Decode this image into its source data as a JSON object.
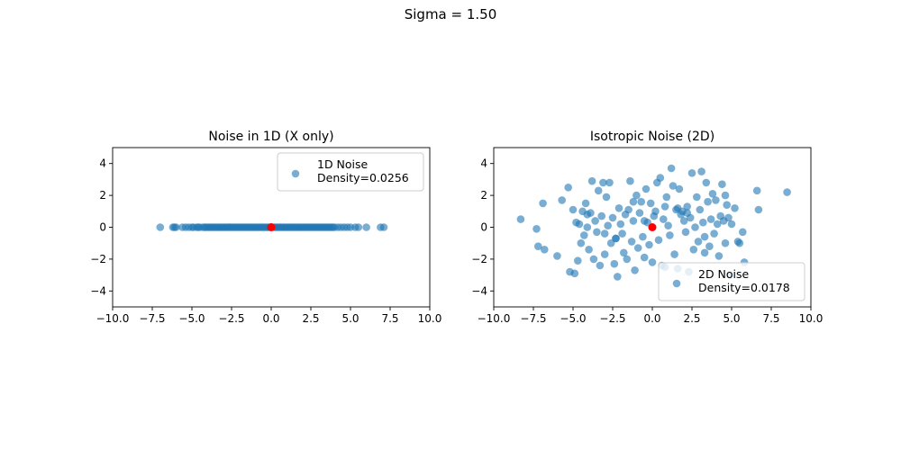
{
  "figure": {
    "suptitle": "Sigma = 1.50"
  },
  "chart_data": [
    {
      "type": "scatter",
      "title": "Noise in 1D (X only)",
      "xlabel": "",
      "ylabel": "",
      "xlim": [
        -10,
        10
      ],
      "ylim": [
        -5,
        5
      ],
      "xticks": [
        -10,
        -7.5,
        -5,
        -2.5,
        0,
        2.5,
        5,
        7.5,
        10
      ],
      "xtick_labels": [
        "−10.0",
        "−7.5",
        "−5.0",
        "−2.5",
        "0.0",
        "2.5",
        "5.0",
        "7.5",
        "10.0"
      ],
      "yticks": [
        -4,
        -2,
        0,
        2,
        4
      ],
      "ytick_labels": [
        "−4",
        "−2",
        "0",
        "2",
        "4"
      ],
      "grid": false,
      "legend": {
        "placement": "upper-right",
        "entries": [
          "1D Noise",
          "Density=0.0256"
        ]
      },
      "series": [
        {
          "name": "1D Noise",
          "color": "#1f77b4",
          "x": [
            -7.0,
            -6.2,
            -6.1,
            -6.0,
            -5.6,
            -5.4,
            -5.2,
            -5.0,
            -4.9,
            -4.7,
            -4.6,
            -4.5,
            -4.3,
            -4.2,
            -4.1,
            -4.0,
            -3.9,
            -3.8,
            -3.7,
            -3.6,
            -3.5,
            -3.4,
            -3.3,
            -3.2,
            -3.1,
            -3.0,
            -2.9,
            -2.8,
            -2.7,
            -2.6,
            -2.5,
            -2.4,
            -2.3,
            -2.2,
            -2.1,
            -2.0,
            -1.9,
            -1.8,
            -1.7,
            -1.6,
            -1.5,
            -1.4,
            -1.3,
            -1.2,
            -1.1,
            -1.0,
            -0.9,
            -0.8,
            -0.7,
            -0.6,
            -0.5,
            -0.4,
            -0.3,
            -0.2,
            -0.1,
            0.1,
            0.2,
            0.3,
            0.4,
            0.5,
            0.6,
            0.7,
            0.8,
            0.9,
            1.0,
            1.1,
            1.2,
            1.3,
            1.4,
            1.5,
            1.6,
            1.7,
            1.8,
            1.9,
            2.0,
            2.1,
            2.2,
            2.3,
            2.4,
            2.5,
            2.6,
            2.7,
            2.8,
            2.9,
            3.0,
            3.1,
            3.2,
            3.3,
            3.4,
            3.5,
            3.6,
            3.7,
            3.8,
            3.9,
            4.0,
            4.2,
            4.4,
            4.6,
            4.8,
            5.0,
            5.3,
            5.5,
            6.0,
            6.9,
            7.1
          ],
          "y": [
            0,
            0,
            0,
            0,
            0,
            0,
            0,
            0,
            0,
            0,
            0,
            0,
            0,
            0,
            0,
            0,
            0,
            0,
            0,
            0,
            0,
            0,
            0,
            0,
            0,
            0,
            0,
            0,
            0,
            0,
            0,
            0,
            0,
            0,
            0,
            0,
            0,
            0,
            0,
            0,
            0,
            0,
            0,
            0,
            0,
            0,
            0,
            0,
            0,
            0,
            0,
            0,
            0,
            0,
            0,
            0,
            0,
            0,
            0,
            0,
            0,
            0,
            0,
            0,
            0,
            0,
            0,
            0,
            0,
            0,
            0,
            0,
            0,
            0,
            0,
            0,
            0,
            0,
            0,
            0,
            0,
            0,
            0,
            0,
            0,
            0,
            0,
            0,
            0,
            0,
            0,
            0,
            0,
            0,
            0,
            0,
            0,
            0,
            0,
            0,
            0,
            0,
            0,
            0,
            0
          ]
        },
        {
          "name": "",
          "color": "#ff0000",
          "x": [
            0
          ],
          "y": [
            0
          ]
        }
      ]
    },
    {
      "type": "scatter",
      "title": "Isotropic Noise (2D)",
      "xlabel": "",
      "ylabel": "",
      "xlim": [
        -10,
        10
      ],
      "ylim": [
        -5,
        5
      ],
      "xticks": [
        -10,
        -7.5,
        -5,
        -2.5,
        0,
        2.5,
        5,
        7.5,
        10
      ],
      "xtick_labels": [
        "−10.0",
        "−7.5",
        "−5.0",
        "−2.5",
        "0.0",
        "2.5",
        "5.0",
        "7.5",
        "10.0"
      ],
      "yticks": [
        -4,
        -2,
        0,
        2,
        4
      ],
      "ytick_labels": [
        "−4",
        "−2",
        "0",
        "2",
        "4"
      ],
      "grid": false,
      "legend": {
        "placement": "lower-right",
        "entries": [
          "2D Noise",
          "Density=0.0178"
        ]
      },
      "series": [
        {
          "name": "2D Noise",
          "color": "#1f77b4",
          "x": [
            -8.3,
            -7.3,
            -7.2,
            -6.9,
            -6.8,
            -6.0,
            -5.7,
            -5.3,
            -5.2,
            -5.0,
            -4.9,
            -4.8,
            -4.7,
            -4.6,
            -4.5,
            -4.4,
            -4.3,
            -4.2,
            -4.1,
            -4.0,
            -3.9,
            -3.8,
            -3.7,
            -3.6,
            -3.5,
            -3.4,
            -3.3,
            -3.2,
            -3.1,
            -3.0,
            -2.9,
            -2.8,
            -2.7,
            -2.6,
            -2.5,
            -2.4,
            -2.3,
            -2.2,
            -2.1,
            -2.0,
            -1.9,
            -1.8,
            -1.7,
            -1.6,
            -1.5,
            -1.4,
            -1.3,
            -1.2,
            -1.1,
            -1.0,
            -0.9,
            -0.8,
            -0.7,
            -0.6,
            -0.5,
            -0.4,
            -0.3,
            -0.2,
            -0.1,
            0.0,
            0.1,
            0.2,
            0.3,
            0.4,
            0.5,
            0.6,
            0.7,
            0.8,
            0.9,
            1.0,
            1.1,
            1.2,
            1.3,
            1.4,
            1.5,
            1.6,
            1.7,
            1.8,
            1.9,
            2.0,
            2.1,
            2.2,
            2.3,
            2.4,
            2.5,
            2.6,
            2.7,
            2.8,
            2.9,
            3.0,
            3.1,
            3.2,
            3.3,
            3.4,
            3.5,
            3.6,
            3.7,
            3.8,
            3.9,
            4.0,
            4.1,
            4.2,
            4.3,
            4.4,
            4.5,
            4.6,
            4.7,
            4.8,
            4.9,
            5.0,
            5.2,
            5.4,
            5.5,
            5.7,
            5.8,
            6.6,
            6.7,
            8.5,
            -4.1,
            -3.0,
            -1.2,
            0.8,
            2.2,
            3.3,
            -0.5,
            1.6,
            -2.3,
            4.6
          ],
          "y": [
            0.5,
            -0.1,
            -1.2,
            1.5,
            -1.4,
            -1.8,
            1.7,
            2.5,
            -2.8,
            1.1,
            -2.9,
            0.3,
            -2.1,
            0.2,
            -1.0,
            1.0,
            -0.5,
            1.5,
            0.8,
            -1.4,
            0.9,
            2.9,
            -2.0,
            0.4,
            -0.3,
            2.3,
            -2.4,
            0.7,
            2.8,
            -1.7,
            1.9,
            0.1,
            2.8,
            -1.0,
            0.6,
            -2.3,
            -0.7,
            -3.1,
            1.2,
            0.2,
            -0.4,
            -1.6,
            0.8,
            -2.0,
            1.1,
            2.9,
            -0.9,
            0.4,
            -2.7,
            2.0,
            -1.3,
            0.9,
            1.6,
            -0.6,
            -1.9,
            2.4,
            0.3,
            -1.1,
            1.5,
            -2.2,
            0.7,
            1.0,
            2.8,
            -0.8,
            3.1,
            -2.4,
            0.5,
            1.3,
            1.9,
            0.1,
            -0.5,
            3.7,
            2.6,
            -1.7,
            1.1,
            -2.6,
            2.4,
            0.8,
            1.0,
            0.4,
            -0.3,
            1.3,
            -2.8,
            0.6,
            3.4,
            -1.4,
            0.0,
            1.9,
            -0.9,
            1.1,
            3.5,
            0.3,
            -0.6,
            2.8,
            1.6,
            -1.2,
            0.5,
            2.1,
            -0.4,
            1.7,
            0.2,
            -1.8,
            0.7,
            2.7,
            0.4,
            -1.0,
            1.4,
            0.6,
            -3.0,
            0.2,
            1.2,
            -0.9,
            -1.0,
            -0.3,
            -2.2,
            2.3,
            1.1,
            2.2,
            0.0,
            -0.4,
            1.6,
            -2.5,
            0.9,
            -1.6,
            0.4,
            1.2,
            -0.7,
            2.0
          ]
        },
        {
          "name": "",
          "color": "#ff0000",
          "x": [
            0
          ],
          "y": [
            0
          ]
        }
      ]
    }
  ]
}
